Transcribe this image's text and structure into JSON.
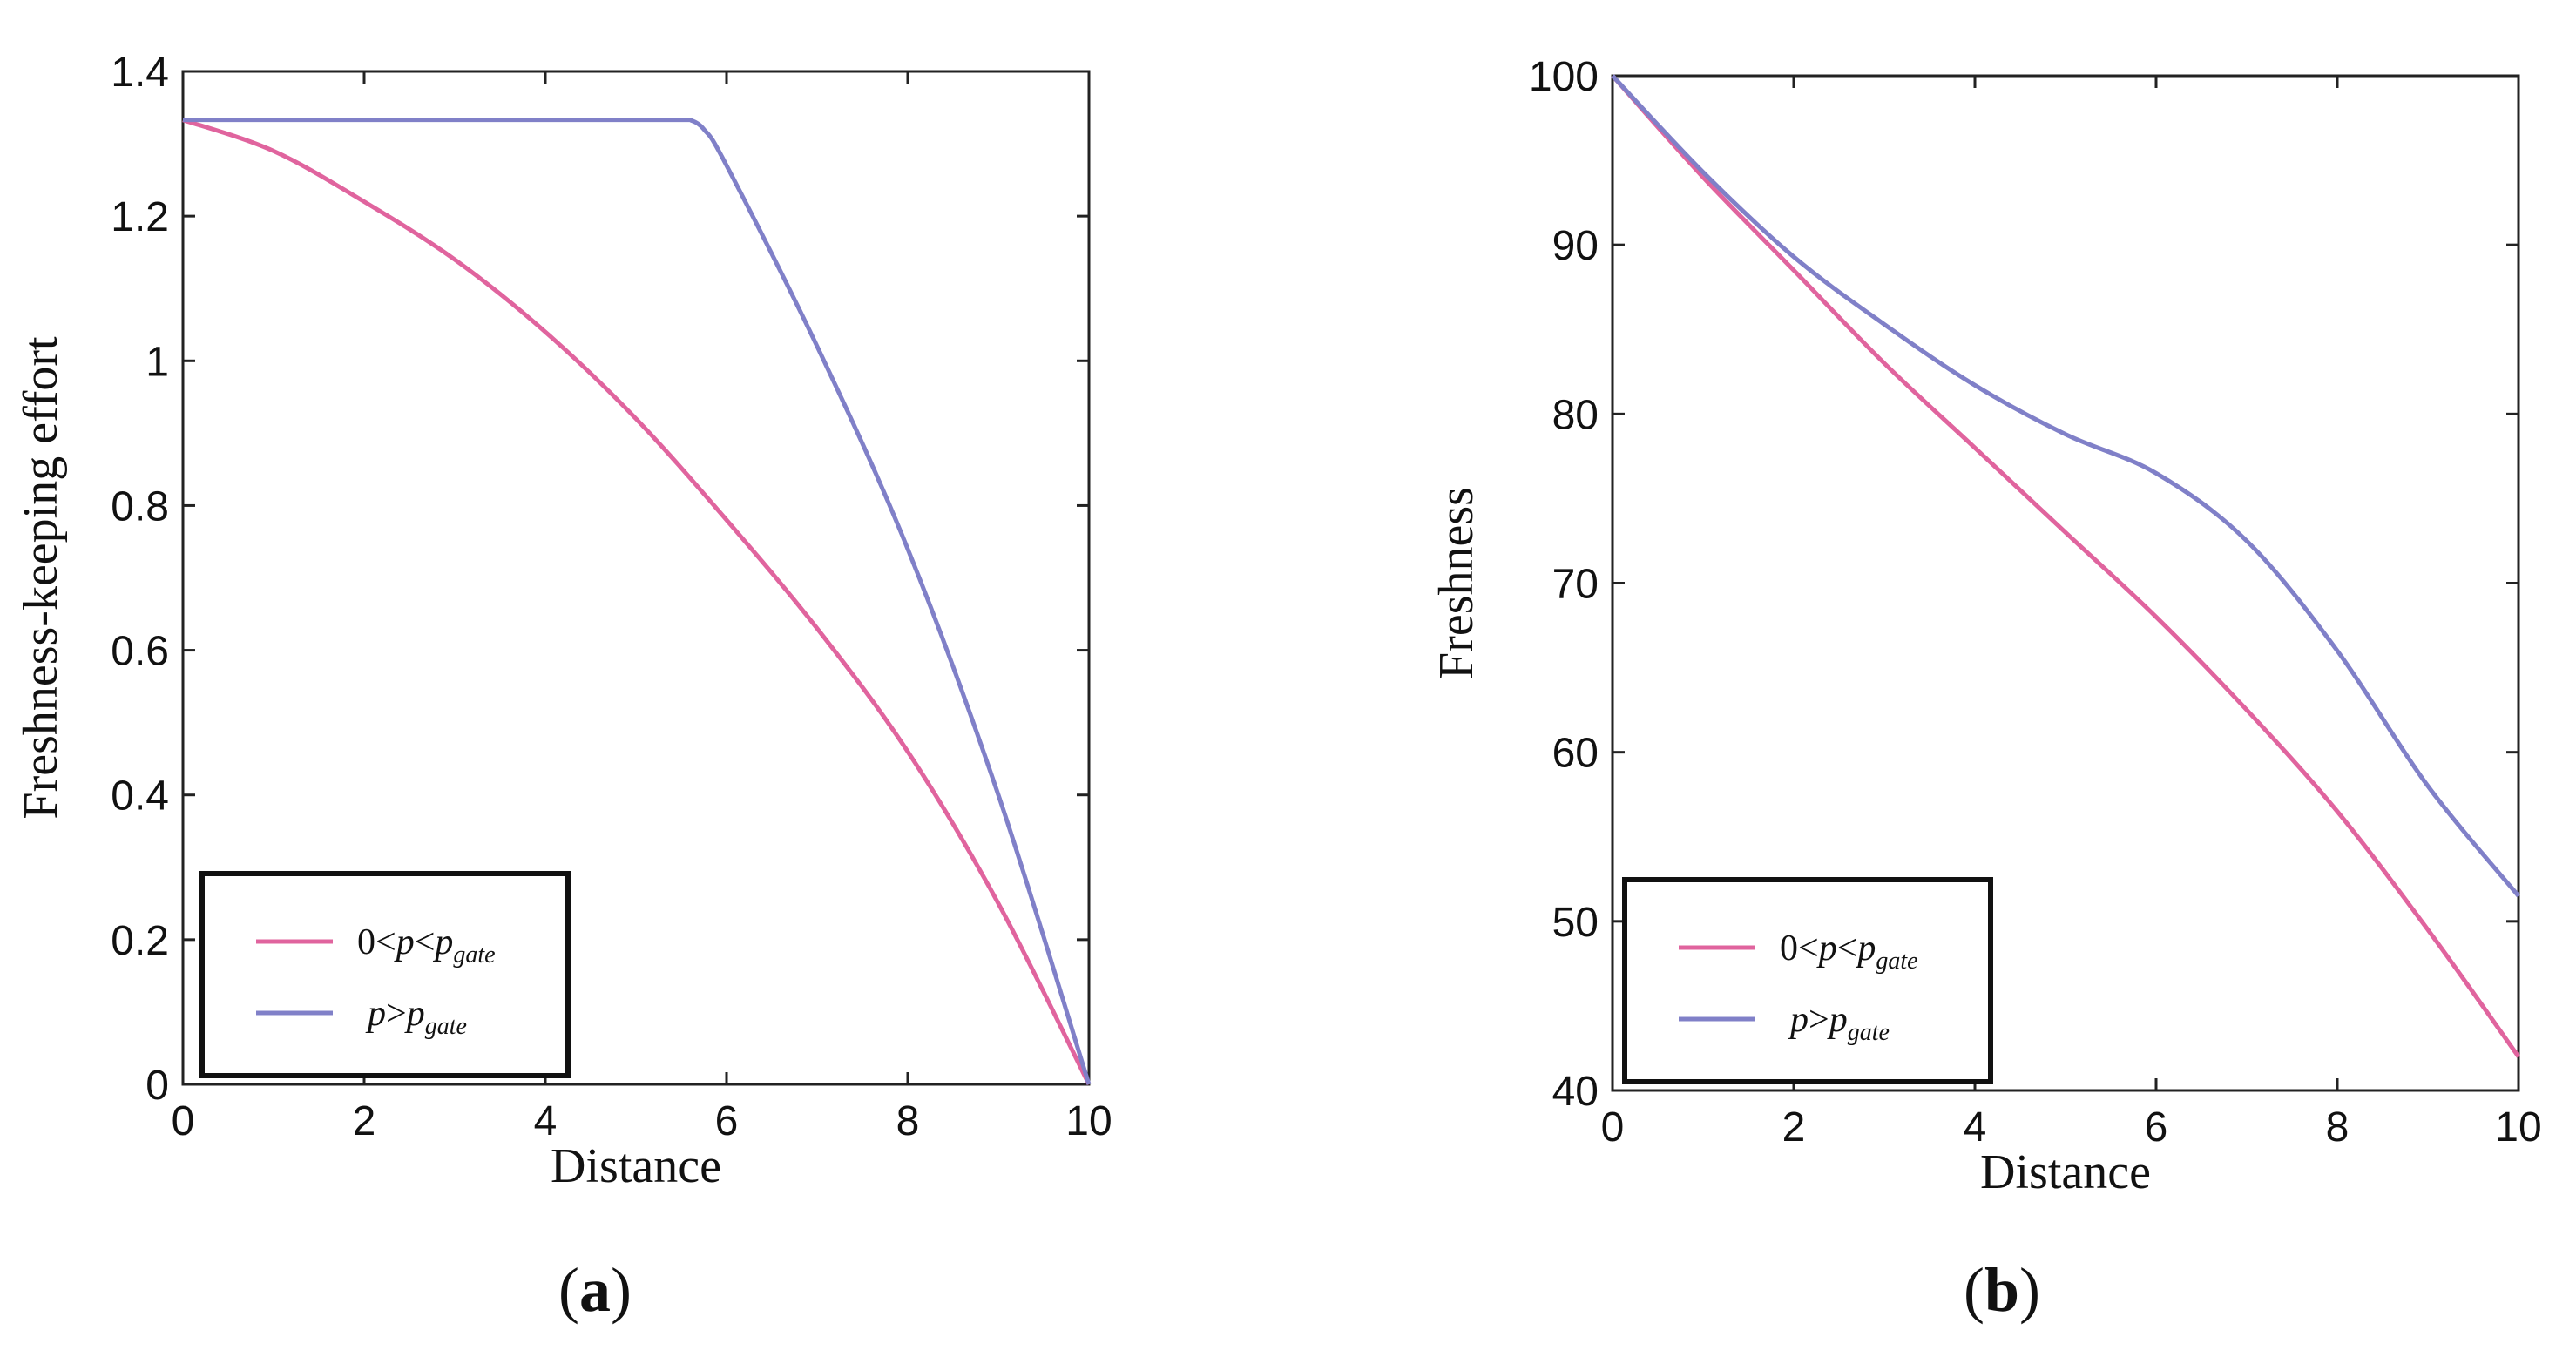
{
  "chart_data": [
    {
      "type": "line",
      "panel_label": "a",
      "xlabel": "Distance",
      "ylabel": "Freshness-keeping effort",
      "xlim": [
        0,
        10
      ],
      "ylim": [
        0,
        1.4
      ],
      "xticks": [
        "0",
        "2",
        "4",
        "6",
        "8",
        "10"
      ],
      "yticks": [
        "0",
        "0.2",
        "0.4",
        "0.6",
        "0.8",
        "1",
        "1.2",
        "1.4"
      ],
      "legend_position": "bottom-left",
      "series": [
        {
          "name": "0<p<p_gate",
          "color": "#e0649e",
          "x": [
            0,
            1,
            2,
            3,
            4,
            5,
            6,
            7,
            8,
            9,
            10
          ],
          "y": [
            1.333,
            1.29,
            1.22,
            1.14,
            1.04,
            0.92,
            0.78,
            0.63,
            0.46,
            0.25,
            0.0
          ]
        },
        {
          "name": "p>p_gate",
          "color": "#8080c8",
          "x": [
            0,
            5.6,
            5.75,
            6,
            7,
            8,
            9,
            10
          ],
          "y": [
            1.333,
            1.333,
            1.32,
            1.27,
            1.02,
            0.74,
            0.4,
            0.0
          ]
        }
      ]
    },
    {
      "type": "line",
      "panel_label": "b",
      "xlabel": "Distance",
      "ylabel": "Freshness",
      "xlim": [
        0,
        10
      ],
      "ylim": [
        40,
        100
      ],
      "xticks": [
        "0",
        "2",
        "4",
        "6",
        "8",
        "10"
      ],
      "yticks": [
        "40",
        "50",
        "60",
        "70",
        "80",
        "90",
        "100"
      ],
      "legend_position": "bottom-left",
      "series": [
        {
          "name": "0<p<p_gate",
          "color": "#e0649e",
          "x": [
            0,
            1,
            2,
            3,
            4,
            5,
            6,
            7,
            8,
            9,
            10
          ],
          "y": [
            100,
            94,
            88.5,
            83,
            78,
            73,
            68,
            62.5,
            56.5,
            49.5,
            42
          ]
        },
        {
          "name": "p>p_gate",
          "color": "#8080c8",
          "x": [
            0,
            1,
            2,
            3,
            4,
            5,
            6,
            7,
            8,
            9,
            10
          ],
          "y": [
            100,
            94.3,
            89.3,
            85.3,
            81.7,
            78.8,
            76.5,
            72.5,
            66,
            58,
            51.5
          ]
        }
      ]
    }
  ]
}
